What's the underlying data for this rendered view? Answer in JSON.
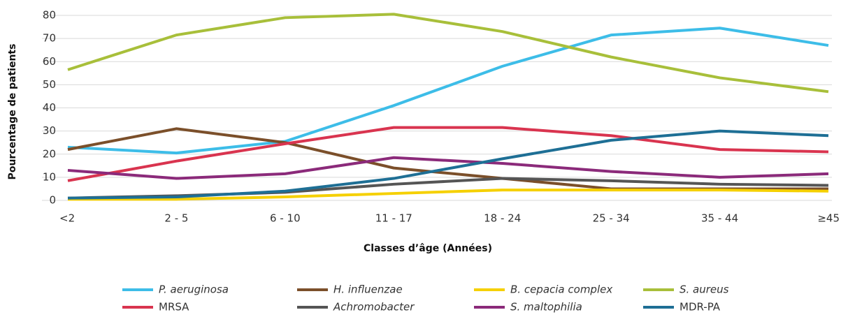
{
  "chart_data": {
    "type": "line",
    "y_label": "Pourcentage de patients",
    "x_label": "Classes d’âge (Années)",
    "categories": [
      "<2",
      "2 - 5",
      "6 - 10",
      "11 - 17",
      "18 - 24",
      "25 - 34",
      "35 - 44",
      "≥45"
    ],
    "series": [
      {
        "name": "P. aeruginosa",
        "color": "#3dbde8",
        "values": [
          23,
          20.5,
          25.5,
          41,
          58,
          71.5,
          74.5,
          67
        ]
      },
      {
        "name": "H. influenzae",
        "color": "#7b4f2a",
        "values": [
          22,
          31,
          25,
          14,
          9.5,
          5,
          5,
          5
        ]
      },
      {
        "name": "B. cepacia complex",
        "color": "#f5d000",
        "values": [
          0.5,
          0.5,
          1.5,
          3,
          4.5,
          4.5,
          4.5,
          4
        ]
      },
      {
        "name": "S. aureus",
        "color": "#a8bf3a",
        "values": [
          56.5,
          71.5,
          79,
          80.5,
          73,
          62,
          53,
          47
        ]
      },
      {
        "name": "MRSA",
        "color": "#d9344f",
        "values": [
          8.5,
          17,
          24.5,
          31.5,
          31.5,
          28,
          22,
          21
        ]
      },
      {
        "name": "Achromobacter",
        "color": "#555555",
        "values": [
          1,
          2,
          3.5,
          7,
          9.5,
          8.5,
          7,
          6.5
        ]
      },
      {
        "name": "S. maltophilia",
        "color": "#8b2a7a",
        "values": [
          13,
          9.5,
          11.5,
          18.5,
          16,
          12.5,
          10,
          11.5
        ]
      },
      {
        "name": "MDR-PA",
        "color": "#1e6f95",
        "values": [
          1,
          1.5,
          4,
          9.5,
          18,
          26,
          30,
          28
        ]
      }
    ],
    "ylim": [
      0,
      80
    ],
    "yticks": [
      0,
      10,
      20,
      30,
      40,
      50,
      60,
      70,
      80
    ],
    "grid": true
  }
}
